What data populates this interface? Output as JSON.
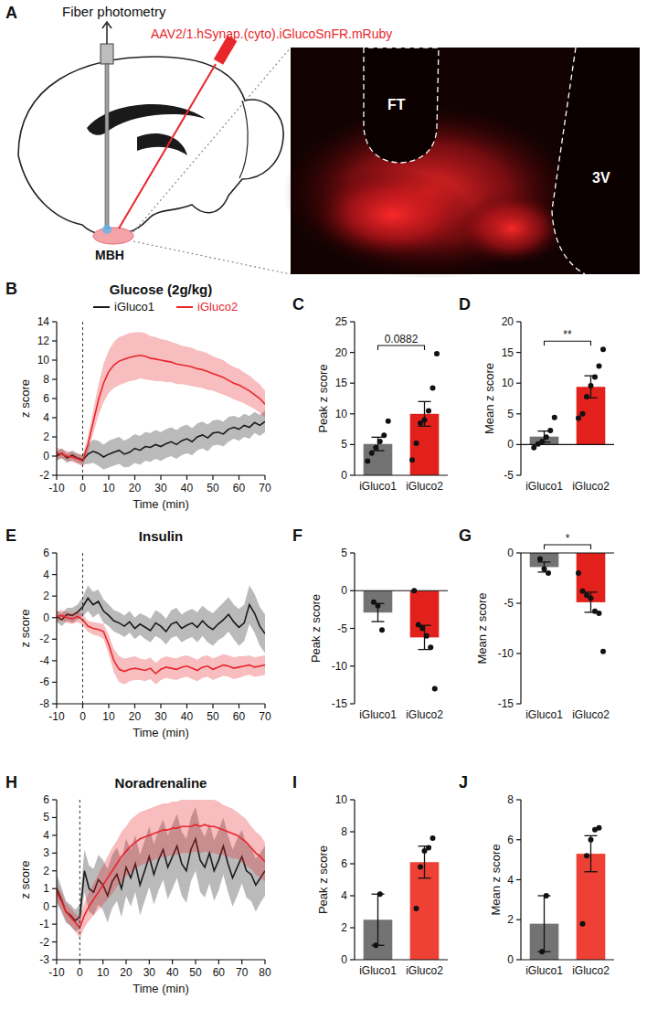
{
  "panel_a": {
    "label": "A",
    "fiber": "Fiber photometry",
    "virus": "AAV2/1.hSynap.(cyto).iGlucoSnFR.mRuby",
    "region": "MBH",
    "histology_labels": [
      "FT",
      "3V"
    ]
  },
  "chart_data": [
    {
      "type": "line",
      "label": "B",
      "title": "Glucose (2g/kg)",
      "xlabel": "Time (min)",
      "ylabel": "z score",
      "legend": "top",
      "vline": 0,
      "x": [
        -10,
        -8,
        -6,
        -4,
        -2,
        0,
        2,
        4,
        6,
        8,
        10,
        12,
        14,
        16,
        18,
        20,
        22,
        24,
        26,
        28,
        30,
        32,
        34,
        36,
        38,
        40,
        42,
        44,
        46,
        48,
        50,
        52,
        54,
        56,
        58,
        60,
        62,
        64,
        66,
        68,
        70
      ],
      "xlim": [
        -10,
        70
      ],
      "xticks": [
        -10,
        0,
        10,
        20,
        30,
        40,
        50,
        60,
        70
      ],
      "ylim": [
        -2,
        14
      ],
      "yticks": [
        -2,
        0,
        2,
        4,
        6,
        8,
        10,
        12,
        14
      ],
      "series": [
        {
          "name": "iGluco1",
          "color": "#1a1a1a",
          "values": [
            0.0,
            0.3,
            -0.2,
            0.1,
            -0.2,
            -0.4,
            0.2,
            0.5,
            0.3,
            -0.1,
            0.2,
            0.4,
            0.6,
            0.2,
            0.4,
            0.8,
            0.6,
            1.0,
            0.9,
            1.2,
            1.0,
            1.3,
            1.5,
            1.2,
            1.6,
            1.8,
            1.5,
            2.0,
            2.2,
            1.9,
            2.4,
            2.5,
            2.3,
            2.8,
            3.0,
            2.8,
            3.2,
            3.0,
            3.5,
            3.2,
            3.6
          ],
          "errors": [
            0.5,
            0.5,
            0.5,
            0.5,
            0.5,
            0.5,
            1.0,
            1.2,
            1.3,
            1.3,
            1.4,
            1.4,
            1.4,
            1.4,
            1.5,
            1.5,
            1.5,
            1.5,
            1.5,
            1.5,
            1.5,
            1.5,
            1.5,
            1.5,
            1.5,
            1.5,
            1.4,
            1.4,
            1.4,
            1.4,
            1.3,
            1.3,
            1.3,
            1.3,
            1.2,
            1.2,
            1.2,
            1.2,
            1.1,
            1.1,
            1.1
          ]
        },
        {
          "name": "iGluco2",
          "color": "#e8262b",
          "values": [
            0.3,
            0.2,
            0.0,
            -0.1,
            -0.3,
            -0.5,
            1.2,
            3.5,
            5.8,
            7.6,
            8.8,
            9.5,
            9.9,
            10.1,
            10.3,
            10.4,
            10.5,
            10.4,
            10.2,
            10.1,
            10.0,
            9.9,
            9.8,
            9.6,
            9.5,
            9.4,
            9.3,
            9.1,
            9.0,
            8.8,
            8.6,
            8.4,
            8.2,
            7.9,
            7.6,
            7.4,
            7.1,
            6.8,
            6.4,
            6.0,
            5.4
          ],
          "errors": [
            0.6,
            0.5,
            0.5,
            0.5,
            0.5,
            0.6,
            0.8,
            1.2,
            1.6,
            2.0,
            2.2,
            2.4,
            2.5,
            2.5,
            2.5,
            2.5,
            2.4,
            2.4,
            2.3,
            2.3,
            2.2,
            2.2,
            2.1,
            2.1,
            2.0,
            2.0,
            2.0,
            1.9,
            1.9,
            1.9,
            1.8,
            1.8,
            1.8,
            1.7,
            1.7,
            1.7,
            1.6,
            1.6,
            1.5,
            1.5,
            1.4
          ]
        }
      ]
    },
    {
      "type": "bar",
      "label": "C",
      "ylabel": "Peak z score",
      "categories": [
        "iGluco1",
        "iGluco2"
      ],
      "values": [
        5.1,
        10.0
      ],
      "errors": [
        1.1,
        2.0
      ],
      "points": [
        [
          2.3,
          3.6,
          4.5,
          5.5,
          6.5,
          8.8
        ],
        [
          2.5,
          5.2,
          8.5,
          9.0,
          10.5,
          14.2,
          19.8
        ]
      ],
      "colors": [
        "#737373",
        "#e3211c"
      ],
      "ylim": [
        0,
        25
      ],
      "yticks": [
        0,
        5,
        10,
        15,
        20,
        25
      ],
      "annotation": "0.0882"
    },
    {
      "type": "bar",
      "label": "D",
      "ylabel": "Mean z score",
      "categories": [
        "iGluco1",
        "iGluco2"
      ],
      "values": [
        1.3,
        9.4
      ],
      "errors": [
        0.9,
        1.8
      ],
      "points": [
        [
          -0.5,
          0.1,
          0.5,
          1.2,
          2.3,
          4.4
        ],
        [
          4.3,
          5.0,
          7.8,
          9.6,
          11.0,
          12.8,
          15.5
        ]
      ],
      "colors": [
        "#737373",
        "#e3211c"
      ],
      "ylim": [
        -5,
        20
      ],
      "yticks": [
        -5,
        0,
        5,
        10,
        15,
        20
      ],
      "annotation": "**"
    },
    {
      "type": "line",
      "label": "E",
      "title": "Insulin",
      "xlabel": "Time (min)",
      "ylabel": "z score",
      "vline": 0,
      "x": [
        -10,
        -8,
        -6,
        -4,
        -2,
        0,
        2,
        4,
        6,
        8,
        10,
        12,
        14,
        16,
        18,
        20,
        22,
        24,
        26,
        28,
        30,
        32,
        34,
        36,
        38,
        40,
        42,
        44,
        46,
        48,
        50,
        52,
        54,
        56,
        58,
        60,
        62,
        64,
        66,
        68,
        70
      ],
      "xlim": [
        -10,
        70
      ],
      "xticks": [
        -10,
        0,
        10,
        20,
        30,
        40,
        50,
        60,
        70
      ],
      "ylim": [
        -8,
        6
      ],
      "yticks": [
        -8,
        -6,
        -4,
        -2,
        0,
        2,
        4,
        6
      ],
      "series": [
        {
          "color": "#1a1a1a",
          "values": [
            0.1,
            -0.2,
            0.3,
            0.2,
            0.5,
            1.0,
            1.8,
            1.2,
            1.5,
            0.6,
            0.2,
            -0.3,
            -0.5,
            -0.8,
            -0.4,
            -1.0,
            -0.6,
            -0.9,
            -1.2,
            -0.5,
            -0.8,
            -1.3,
            -0.6,
            -0.4,
            -1.0,
            -0.7,
            -0.5,
            -0.9,
            -0.3,
            -0.8,
            -1.1,
            -0.6,
            -0.2,
            0.3,
            -0.4,
            -0.9,
            -0.5,
            1.2,
            0.4,
            -0.8,
            -1.5
          ],
          "errors": [
            0.5,
            0.6,
            0.6,
            0.7,
            0.7,
            0.9,
            1.2,
            1.2,
            1.1,
            1.1,
            1.0,
            1.0,
            1.0,
            1.0,
            1.0,
            1.0,
            1.0,
            1.1,
            1.1,
            1.2,
            1.2,
            1.2,
            1.3,
            1.3,
            1.3,
            1.3,
            1.3,
            1.4,
            1.4,
            1.5,
            1.5,
            1.5,
            1.6,
            1.6,
            1.6,
            1.7,
            1.7,
            1.8,
            1.8,
            1.8,
            1.8
          ]
        },
        {
          "color": "#e8262b",
          "values": [
            0.1,
            0.2,
            0.0,
            -0.1,
            0.1,
            -0.2,
            -0.8,
            -1.0,
            -1.1,
            -1.3,
            -2.5,
            -4.0,
            -4.8,
            -5.0,
            -4.8,
            -4.7,
            -4.8,
            -4.9,
            -4.7,
            -5.2,
            -4.8,
            -4.6,
            -4.7,
            -4.8,
            -4.6,
            -4.5,
            -4.7,
            -4.9,
            -4.6,
            -4.5,
            -4.8,
            -4.6,
            -4.4,
            -4.5,
            -4.7,
            -4.6,
            -4.5,
            -4.4,
            -4.6,
            -4.5,
            -4.4
          ],
          "errors": [
            0.5,
            0.5,
            0.5,
            0.5,
            0.5,
            0.5,
            0.5,
            0.6,
            0.6,
            0.7,
            0.9,
            1.1,
            1.2,
            1.2,
            1.1,
            1.1,
            1.0,
            1.0,
            1.0,
            1.0,
            1.0,
            1.0,
            1.0,
            1.0,
            1.0,
            1.0,
            1.0,
            1.0,
            1.0,
            1.0,
            1.0,
            1.0,
            1.0,
            1.0,
            1.0,
            1.0,
            0.9,
            0.9,
            0.9,
            0.9,
            0.9
          ]
        }
      ]
    },
    {
      "type": "bar",
      "label": "F",
      "ylabel": "Peak z score",
      "categories": [
        "iGluco1",
        "iGluco2"
      ],
      "values": [
        -2.9,
        -6.2
      ],
      "errors": [
        1.2,
        1.6
      ],
      "points": [
        [
          -1.5,
          -2.0,
          -5.2
        ],
        [
          0.0,
          -4.5,
          -5.0,
          -6.0,
          -7.5,
          -13.0
        ]
      ],
      "colors": [
        "#737373",
        "#e3211c"
      ],
      "ylim": [
        -15,
        5
      ],
      "yticks": [
        -15,
        -10,
        -5,
        0,
        5
      ]
    },
    {
      "type": "bar",
      "label": "G",
      "ylabel": "Mean z score",
      "categories": [
        "iGluco1",
        "iGluco2"
      ],
      "values": [
        -1.4,
        -4.9
      ],
      "errors": [
        0.5,
        1.0
      ],
      "points": [
        [
          -0.6,
          -1.6,
          -2.0
        ],
        [
          -2.0,
          -3.8,
          -4.2,
          -4.5,
          -5.8,
          -6.0,
          -9.8
        ]
      ],
      "colors": [
        "#737373",
        "#e3211c"
      ],
      "ylim": [
        -15,
        0
      ],
      "yticks": [
        -15,
        -10,
        -5,
        0
      ],
      "annotation": "*"
    },
    {
      "type": "line",
      "label": "H",
      "title": "Noradrenaline",
      "xlabel": "Time (min)",
      "ylabel": "z score",
      "vline": 0,
      "x": [
        -10,
        -8,
        -6,
        -4,
        -2,
        0,
        2,
        4,
        6,
        8,
        10,
        12,
        14,
        16,
        18,
        20,
        22,
        24,
        26,
        28,
        30,
        32,
        34,
        36,
        38,
        40,
        42,
        44,
        46,
        48,
        50,
        52,
        54,
        56,
        58,
        60,
        62,
        64,
        66,
        68,
        70,
        72,
        74,
        76,
        78,
        80
      ],
      "xlim": [
        -10,
        80
      ],
      "xticks": [
        -10,
        0,
        10,
        20,
        30,
        40,
        50,
        60,
        70,
        80
      ],
      "ylim": [
        -3,
        6
      ],
      "yticks": [
        -3,
        -2,
        -1,
        0,
        1,
        2,
        3,
        4,
        5,
        6
      ],
      "series": [
        {
          "color": "#1a1a1a",
          "values": [
            1.0,
            0.4,
            -0.3,
            -0.5,
            -0.8,
            -0.6,
            2.0,
            1.0,
            0.8,
            1.5,
            1.2,
            0.6,
            1.4,
            1.8,
            1.0,
            2.2,
            1.6,
            2.4,
            1.2,
            2.0,
            2.8,
            1.8,
            2.6,
            3.2,
            2.2,
            2.8,
            3.4,
            2.4,
            2.0,
            3.2,
            3.8,
            2.6,
            2.2,
            3.0,
            2.0,
            2.6,
            3.4,
            2.4,
            1.6,
            2.2,
            2.8,
            2.0,
            1.8,
            1.2,
            1.6,
            2.0
          ],
          "errors": [
            0.8,
            0.7,
            0.6,
            0.6,
            0.6,
            0.7,
            1.2,
            1.3,
            1.3,
            1.4,
            1.4,
            1.5,
            1.5,
            1.5,
            1.6,
            1.6,
            1.6,
            1.6,
            1.7,
            1.7,
            1.7,
            1.7,
            1.7,
            1.7,
            1.8,
            1.8,
            1.8,
            1.8,
            1.8,
            1.8,
            1.8,
            1.8,
            1.7,
            1.7,
            1.7,
            1.7,
            1.6,
            1.6,
            1.6,
            1.6,
            1.5,
            1.5,
            1.5,
            1.5,
            1.4,
            1.4
          ]
        },
        {
          "color": "#e8262b",
          "values": [
            0.8,
            0.3,
            -0.3,
            -0.6,
            -0.9,
            -1.2,
            -0.5,
            0.0,
            0.4,
            0.8,
            1.2,
            1.6,
            2.0,
            2.4,
            2.8,
            3.1,
            3.4,
            3.6,
            3.8,
            3.9,
            4.0,
            4.1,
            4.2,
            4.3,
            4.3,
            4.4,
            4.4,
            4.5,
            4.5,
            4.5,
            4.6,
            4.5,
            4.6,
            4.5,
            4.5,
            4.4,
            4.3,
            4.2,
            4.1,
            4.0,
            3.8,
            3.6,
            3.3,
            3.0,
            2.8,
            2.5
          ],
          "errors": [
            0.5,
            0.5,
            0.5,
            0.5,
            0.5,
            0.6,
            0.7,
            0.8,
            0.9,
            1.0,
            1.1,
            1.2,
            1.3,
            1.3,
            1.4,
            1.4,
            1.5,
            1.5,
            1.5,
            1.5,
            1.5,
            1.5,
            1.5,
            1.5,
            1.5,
            1.5,
            1.5,
            1.5,
            1.5,
            1.5,
            1.5,
            1.5,
            1.5,
            1.5,
            1.5,
            1.5,
            1.4,
            1.4,
            1.4,
            1.3,
            1.3,
            1.3,
            1.2,
            1.2,
            1.2,
            1.1
          ]
        }
      ]
    },
    {
      "type": "bar",
      "label": "I",
      "ylabel": "Peak z score",
      "categories": [
        "iGluco1",
        "iGluco2"
      ],
      "values": [
        2.5,
        6.1
      ],
      "errors": [
        1.6,
        1.0
      ],
      "points": [
        [
          0.9,
          4.1
        ],
        [
          3.2,
          5.8,
          6.8,
          7.0,
          7.6
        ]
      ],
      "colors": [
        "#737373",
        "#ee4035"
      ],
      "ylim": [
        0,
        10
      ],
      "yticks": [
        0,
        2,
        4,
        6,
        8,
        10
      ]
    },
    {
      "type": "bar",
      "label": "J",
      "ylabel": "Mean z score",
      "categories": [
        "iGluco1",
        "iGluco2"
      ],
      "values": [
        1.8,
        5.3
      ],
      "errors": [
        1.4,
        0.9
      ],
      "points": [
        [
          0.4,
          3.2
        ],
        [
          1.8,
          5.2,
          6.0,
          6.5,
          6.6
        ]
      ],
      "colors": [
        "#737373",
        "#ee4035"
      ],
      "ylim": [
        0,
        8
      ],
      "yticks": [
        0,
        2,
        4,
        6,
        8
      ]
    }
  ]
}
